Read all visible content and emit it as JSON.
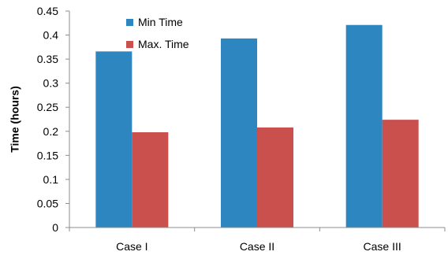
{
  "chart_data": {
    "type": "bar",
    "categories": [
      "Case I",
      "Case II",
      "Case III"
    ],
    "series": [
      {
        "name": "Min Time",
        "values": [
          0.366,
          0.393,
          0.421
        ],
        "color": "#2e86c1"
      },
      {
        "name": "Max. Time",
        "values": [
          0.198,
          0.208,
          0.224
        ],
        "color": "#c9504c"
      }
    ],
    "title": "",
    "xlabel": "",
    "ylabel": "Time (hours)",
    "ylim": [
      0,
      0.45
    ],
    "yticks": [
      "0",
      "0.05",
      "0.1",
      "0.15",
      "0.2",
      "0.25",
      "0.3",
      "0.35",
      "0.4",
      "0.45"
    ],
    "grid": false,
    "legend_position": "top-left"
  }
}
